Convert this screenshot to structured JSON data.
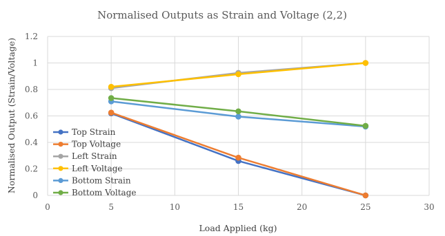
{
  "chart_data": {
    "type": "line",
    "title": "Normalised  Outputs as Strain and Voltage  (2,2)",
    "xlabel": "Load Applied (kg)",
    "ylabel": "Normalised Output (Strain/Voltage)",
    "xlim": [
      0,
      30
    ],
    "ylim": [
      0,
      1.2
    ],
    "x_ticks": [
      "0",
      "5",
      "10",
      "15",
      "20",
      "25",
      "30"
    ],
    "y_ticks": [
      "0",
      "0.2",
      "0.4",
      "0.6",
      "0.8",
      "1",
      "1.2"
    ],
    "x": [
      5,
      15,
      25
    ],
    "grid": true,
    "legend_position": "bottom-left",
    "series": [
      {
        "name": "Top  Strain",
        "color": "#4472c4",
        "values": [
          0.62,
          0.26,
          0.0
        ]
      },
      {
        "name": "Top  Voltage",
        "color": "#ed7d31",
        "values": [
          0.625,
          0.285,
          0.0
        ]
      },
      {
        "name": "Left  Strain",
        "color": "#a5a5a5",
        "values": [
          0.81,
          0.925,
          1.0
        ]
      },
      {
        "name": "Left  Voltage",
        "color": "#ffc000",
        "values": [
          0.82,
          0.915,
          1.0
        ]
      },
      {
        "name": "Bottom  Strain",
        "color": "#5b9bd5",
        "values": [
          0.71,
          0.595,
          0.52
        ]
      },
      {
        "name": "Bottom  Voltage",
        "color": "#70ad47",
        "values": [
          0.735,
          0.635,
          0.525
        ]
      }
    ]
  }
}
